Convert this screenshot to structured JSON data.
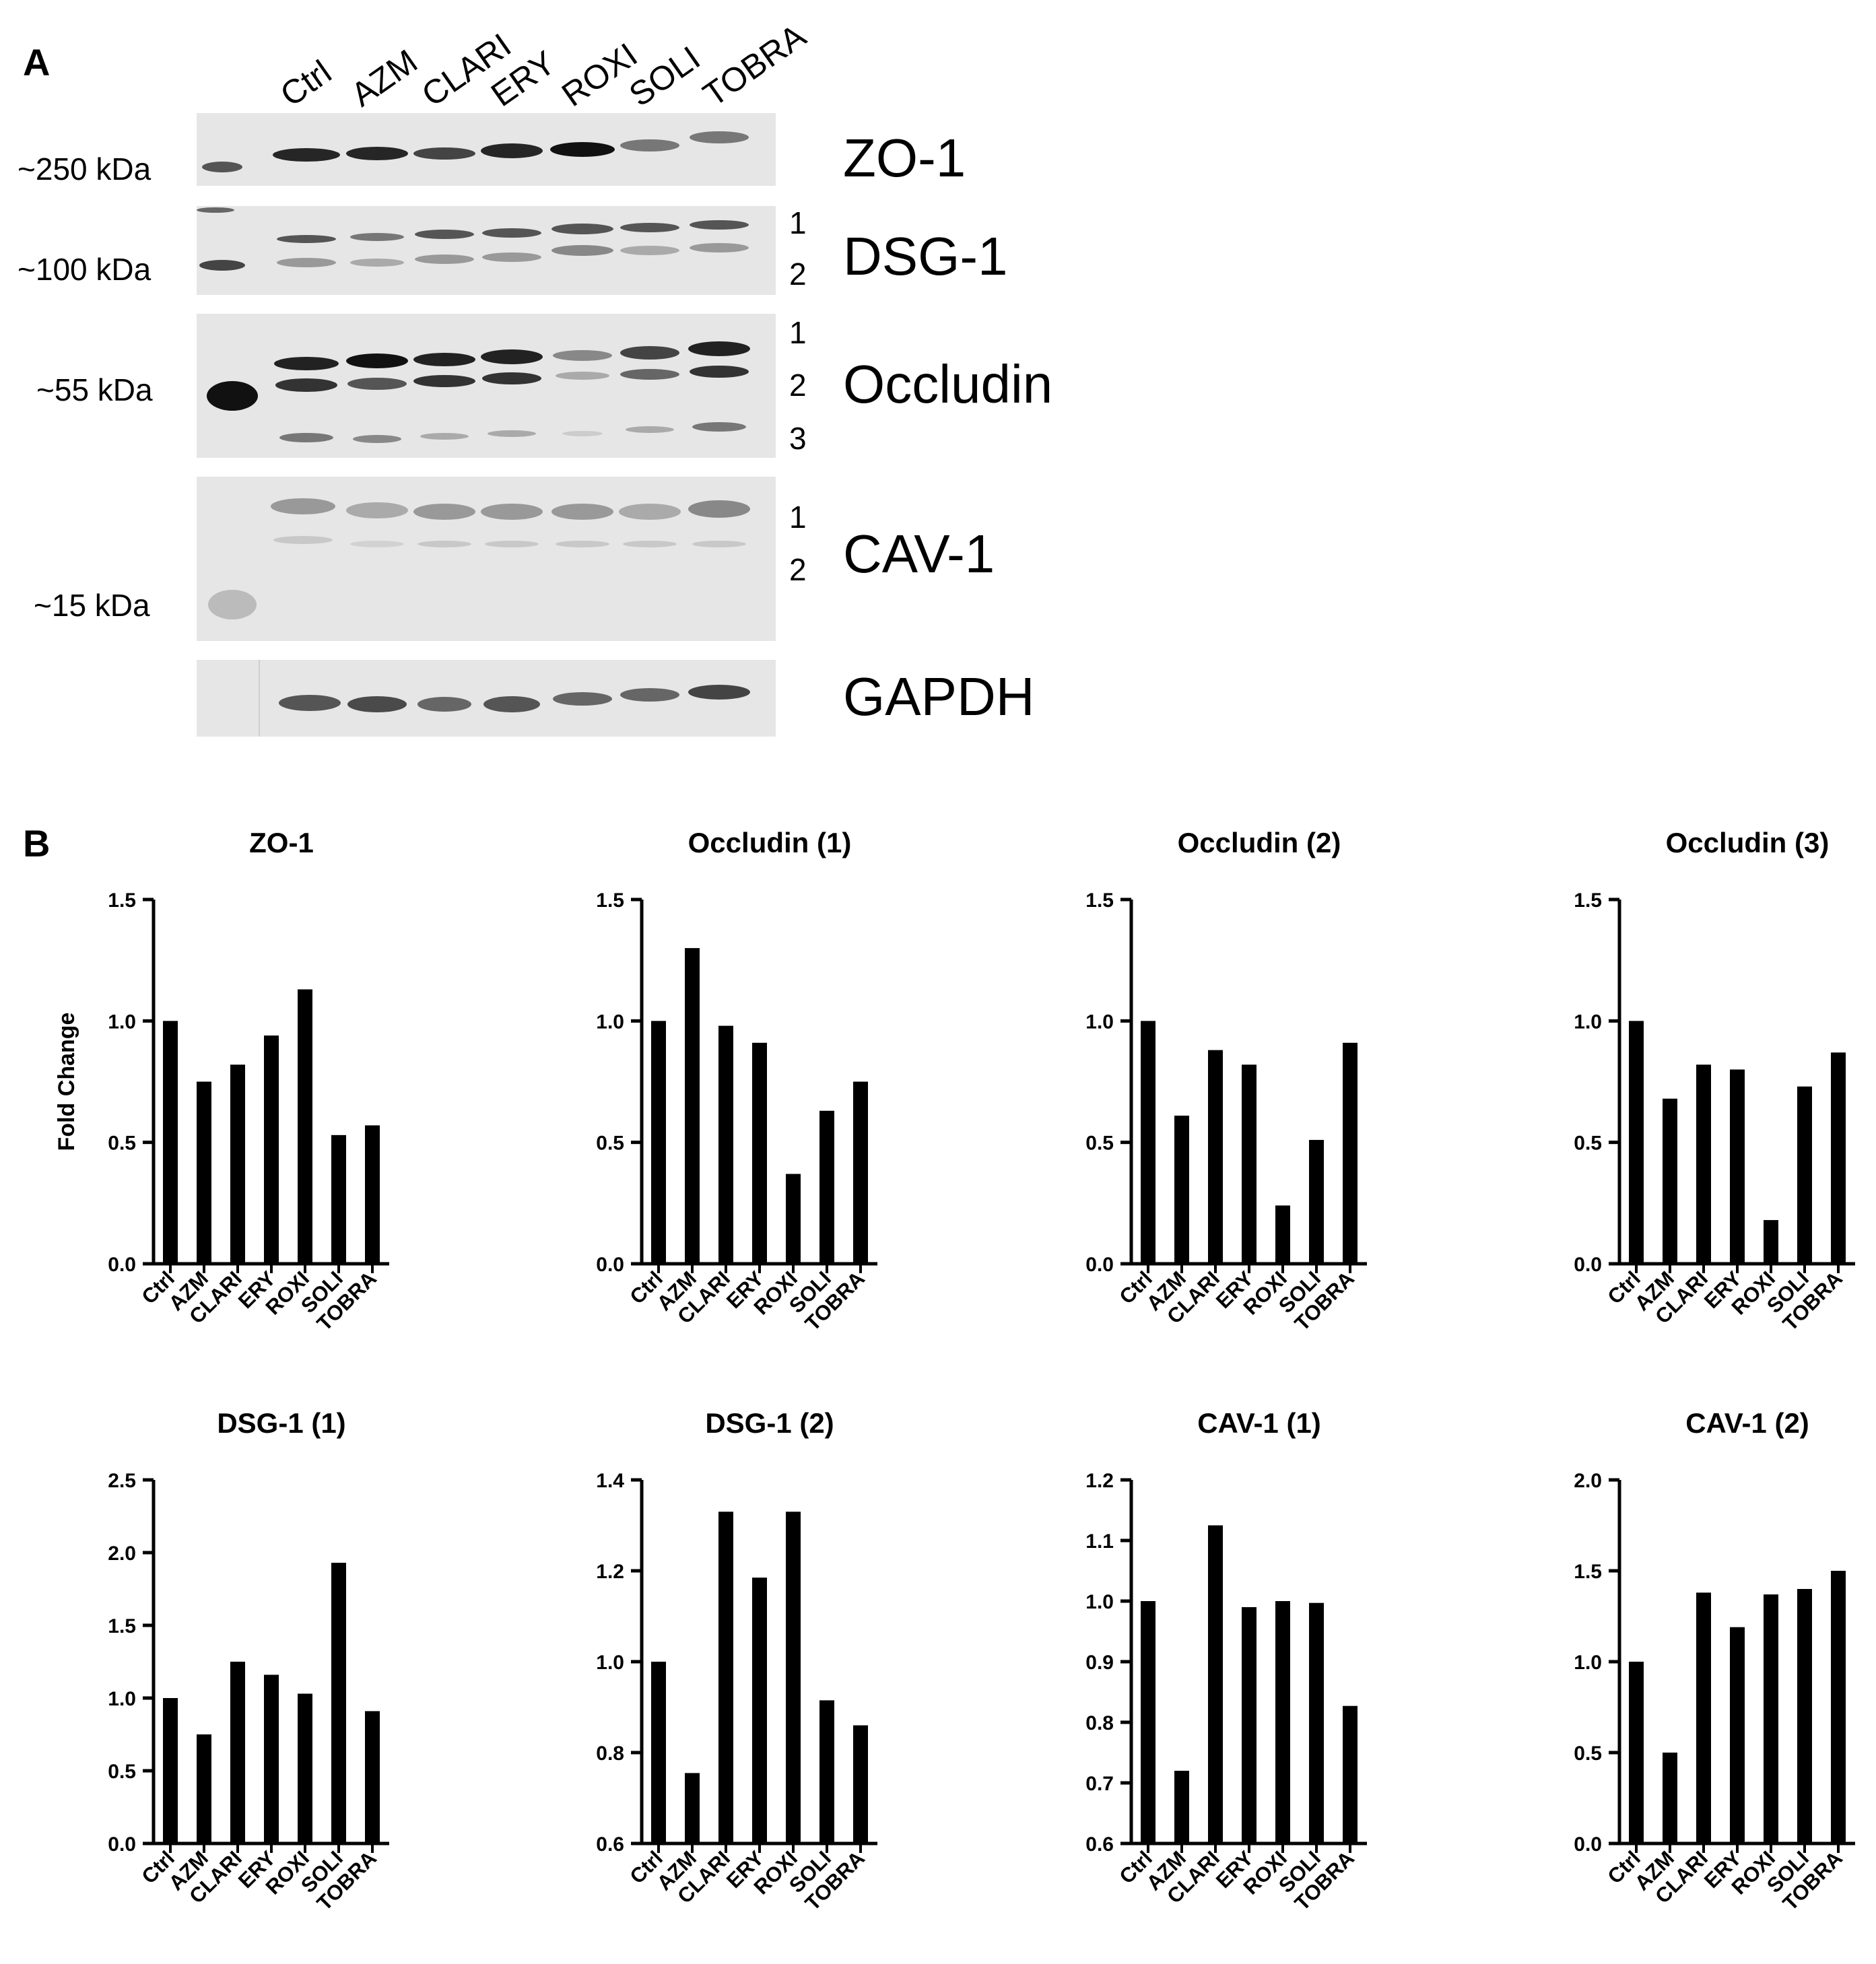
{
  "panel_a": {
    "letter": "A",
    "lanes": [
      "Ctrl",
      "AZM",
      "CLARI",
      "ERY",
      "ROXI",
      "SOLI",
      "TOBRA"
    ],
    "blots": [
      {
        "protein": "ZO-1",
        "marker": "~250 kDa",
        "band_indices": []
      },
      {
        "protein": "DSG-1",
        "marker": "~100 kDa",
        "band_indices": [
          "1",
          "2"
        ]
      },
      {
        "protein": "Occludin",
        "marker": "~55 kDa",
        "band_indices": [
          "1",
          "2",
          "3"
        ]
      },
      {
        "protein": "CAV-1",
        "marker": "~15 kDa",
        "band_indices": [
          "1",
          "2"
        ]
      },
      {
        "protein": "GAPDH",
        "marker": "",
        "band_indices": []
      }
    ],
    "band_intensity_note": "relative darkness per lane shown by band shading",
    "band_colors": {
      "strong": "#1e1e1e",
      "weak": "#8a8a8a",
      "background": "#e8e8e8"
    }
  },
  "panel_b": {
    "letter": "B"
  },
  "chart_data": [
    {
      "type": "bar",
      "title": "ZO-1",
      "ylabel": "Fold Change",
      "categories": [
        "Ctrl",
        "AZM",
        "CLARI",
        "ERY",
        "ROXI",
        "SOLI",
        "TOBRA"
      ],
      "values": [
        1.0,
        0.75,
        0.82,
        0.94,
        1.13,
        0.53,
        0.57
      ],
      "ylim": [
        0,
        1.5
      ],
      "yticks": [
        "0.0",
        "0.5",
        "1.0",
        "1.5"
      ]
    },
    {
      "type": "bar",
      "title": "Occludin (1)",
      "ylabel": "",
      "categories": [
        "Ctrl",
        "AZM",
        "CLARI",
        "ERY",
        "ROXI",
        "SOLI",
        "TOBRA"
      ],
      "values": [
        1.0,
        1.3,
        0.98,
        0.91,
        0.37,
        0.63,
        0.75
      ],
      "ylim": [
        0,
        1.5
      ],
      "yticks": [
        "0.0",
        "0.5",
        "1.0",
        "1.5"
      ]
    },
    {
      "type": "bar",
      "title": "Occludin (2)",
      "ylabel": "",
      "categories": [
        "Ctrl",
        "AZM",
        "CLARI",
        "ERY",
        "ROXI",
        "SOLI",
        "TOBRA"
      ],
      "values": [
        1.0,
        0.61,
        0.88,
        0.82,
        0.24,
        0.51,
        0.91
      ],
      "ylim": [
        0,
        1.5
      ],
      "yticks": [
        "0.0",
        "0.5",
        "1.0",
        "1.5"
      ]
    },
    {
      "type": "bar",
      "title": "Occludin (3)",
      "ylabel": "",
      "categories": [
        "Ctrl",
        "AZM",
        "CLARI",
        "ERY",
        "ROXI",
        "SOLI",
        "TOBRA"
      ],
      "values": [
        1.0,
        0.68,
        0.82,
        0.8,
        0.18,
        0.73,
        0.87
      ],
      "ylim": [
        0,
        1.5
      ],
      "yticks": [
        "0.0",
        "0.5",
        "1.0",
        "1.5"
      ]
    },
    {
      "type": "bar",
      "title": "DSG-1 (1)",
      "ylabel": "",
      "categories": [
        "Ctrl",
        "AZM",
        "CLARI",
        "ERY",
        "ROXI",
        "SOLI",
        "TOBRA"
      ],
      "values": [
        1.0,
        0.75,
        1.25,
        1.16,
        1.03,
        1.93,
        0.91
      ],
      "ylim": [
        0,
        2.5
      ],
      "yticks": [
        "0.0",
        "0.5",
        "1.0",
        "1.5",
        "2.0",
        "2.5"
      ]
    },
    {
      "type": "bar",
      "title": "DSG-1 (2)",
      "ylabel": "",
      "categories": [
        "Ctrl",
        "AZM",
        "CLARI",
        "ERY",
        "ROXI",
        "SOLI",
        "TOBRA"
      ],
      "values": [
        1.0,
        0.755,
        1.33,
        1.185,
        1.33,
        0.915,
        0.86
      ],
      "ylim": [
        0.6,
        1.4
      ],
      "yticks": [
        "0.6",
        "0.8",
        "1.0",
        "1.2",
        "1.4"
      ]
    },
    {
      "type": "bar",
      "title": "CAV-1 (1)",
      "ylabel": "",
      "categories": [
        "Ctrl",
        "AZM",
        "CLARI",
        "ERY",
        "ROXI",
        "SOLI",
        "TOBRA"
      ],
      "values": [
        1.0,
        0.72,
        1.125,
        0.99,
        1.0,
        0.997,
        0.827
      ],
      "ylim": [
        0.6,
        1.2
      ],
      "yticks": [
        "0.6",
        "0.7",
        "0.8",
        "0.9",
        "1.0",
        "1.1",
        "1.2"
      ]
    },
    {
      "type": "bar",
      "title": "CAV-1 (2)",
      "ylabel": "",
      "categories": [
        "Ctrl",
        "AZM",
        "CLARI",
        "ERY",
        "ROXI",
        "SOLI",
        "TOBRA"
      ],
      "values": [
        1.0,
        0.5,
        1.38,
        1.19,
        1.37,
        1.4,
        1.5
      ],
      "ylim": [
        0,
        2.0
      ],
      "yticks": [
        "0.0",
        "0.5",
        "1.0",
        "1.5",
        "2.0"
      ]
    }
  ]
}
